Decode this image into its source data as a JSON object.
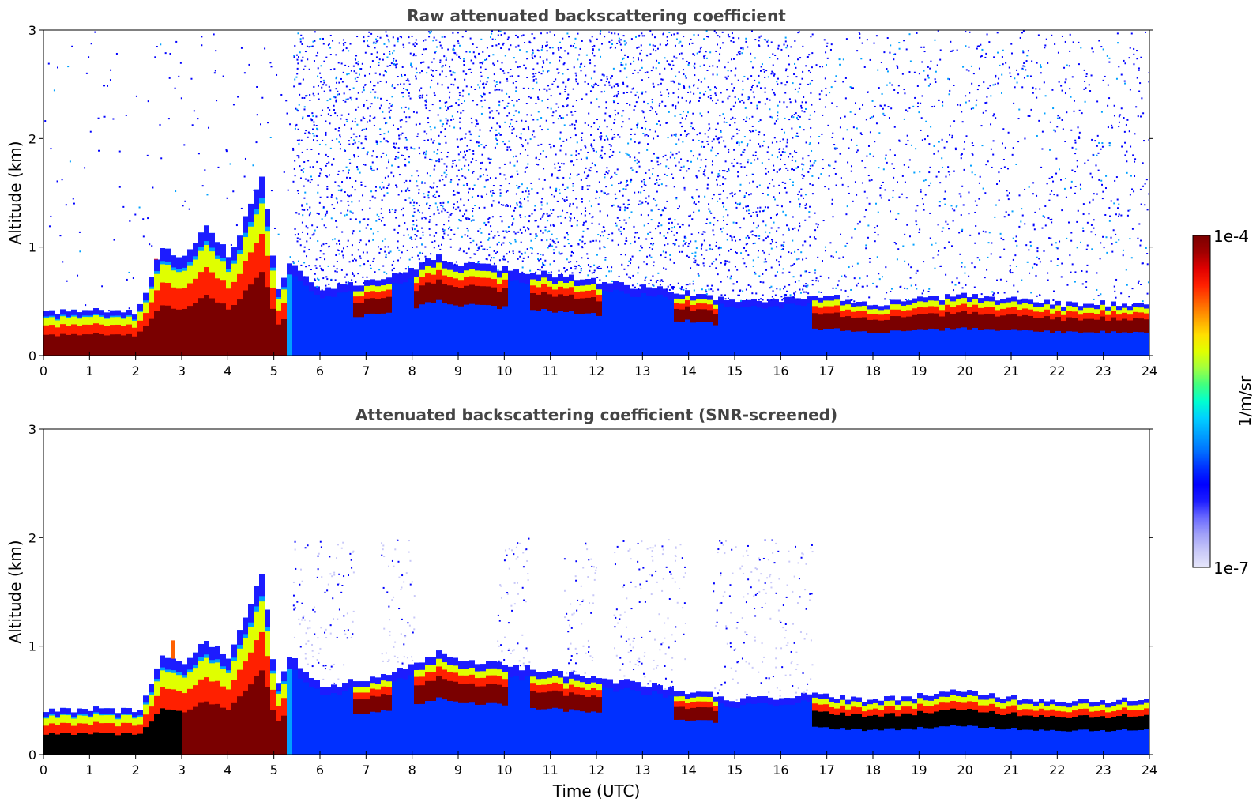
{
  "chart_data": [
    {
      "type": "heatmap",
      "title": "Raw attenuated backscattering coefficient",
      "xlabel": "",
      "ylabel": "Altitude (km)",
      "xlim": [
        0,
        24
      ],
      "ylim": [
        0,
        3
      ],
      "x_ticks": [
        "0",
        "1",
        "2",
        "3",
        "4",
        "5",
        "6",
        "7",
        "8",
        "9",
        "10",
        "11",
        "12",
        "13",
        "14",
        "15",
        "16",
        "17",
        "18",
        "19",
        "20",
        "21",
        "22",
        "23",
        "24"
      ],
      "y_ticks": [
        "0",
        "1",
        "2",
        "3"
      ],
      "layer_top_km": [
        [
          0,
          0.4
        ],
        [
          1,
          0.42
        ],
        [
          2,
          0.4
        ],
        [
          2.5,
          1.0
        ],
        [
          3,
          0.9
        ],
        [
          3.5,
          1.2
        ],
        [
          4,
          0.9
        ],
        [
          4.7,
          1.7
        ],
        [
          5,
          0.6
        ],
        [
          5.3,
          0.85
        ],
        [
          6,
          0.6
        ],
        [
          7,
          0.68
        ],
        [
          8,
          0.8
        ],
        [
          8.5,
          0.92
        ],
        [
          9,
          0.85
        ],
        [
          10,
          0.8
        ],
        [
          11,
          0.75
        ],
        [
          12,
          0.68
        ],
        [
          13,
          0.63
        ],
        [
          14,
          0.58
        ],
        [
          15,
          0.5
        ],
        [
          16,
          0.52
        ],
        [
          16.6,
          0.55
        ],
        [
          17,
          0.55
        ],
        [
          18,
          0.48
        ],
        [
          19,
          0.52
        ],
        [
          20,
          0.55
        ],
        [
          21,
          0.52
        ],
        [
          22,
          0.48
        ],
        [
          23,
          0.48
        ],
        [
          24,
          0.48
        ]
      ],
      "noise_level": "high"
    },
    {
      "type": "heatmap",
      "title": "Attenuated backscattering coefficient (SNR-screened)",
      "xlabel": "Time (UTC)",
      "ylabel": "Altitude (km)",
      "xlim": [
        0,
        24
      ],
      "ylim": [
        0,
        3
      ],
      "x_ticks": [
        "0",
        "1",
        "2",
        "3",
        "4",
        "5",
        "6",
        "7",
        "8",
        "9",
        "10",
        "11",
        "12",
        "13",
        "14",
        "15",
        "16",
        "17",
        "18",
        "19",
        "20",
        "21",
        "22",
        "23",
        "24"
      ],
      "y_ticks": [
        "0",
        "1",
        "2",
        "3"
      ],
      "layer_top_km": [
        [
          0,
          0.4
        ],
        [
          1,
          0.42
        ],
        [
          2,
          0.4
        ],
        [
          2.5,
          0.9
        ],
        [
          3,
          0.85
        ],
        [
          3.5,
          1.05
        ],
        [
          4,
          0.9
        ],
        [
          4.7,
          1.7
        ],
        [
          5,
          0.6
        ],
        [
          5.3,
          0.9
        ],
        [
          6,
          0.62
        ],
        [
          7,
          0.7
        ],
        [
          8,
          0.82
        ],
        [
          8.5,
          0.95
        ],
        [
          9,
          0.88
        ],
        [
          10,
          0.82
        ],
        [
          11,
          0.76
        ],
        [
          12,
          0.7
        ],
        [
          13,
          0.65
        ],
        [
          14,
          0.58
        ],
        [
          15,
          0.5
        ],
        [
          16,
          0.53
        ],
        [
          16.6,
          0.55
        ],
        [
          17,
          0.55
        ],
        [
          18,
          0.5
        ],
        [
          19,
          0.55
        ],
        [
          20,
          0.58
        ],
        [
          21,
          0.53
        ],
        [
          22,
          0.5
        ],
        [
          23,
          0.5
        ],
        [
          24,
          0.5
        ]
      ],
      "noise_level": "low"
    }
  ],
  "colorbar": {
    "label": "1/m/sr",
    "max_label": "1e-4",
    "min_label": "1e-7",
    "scale": "log",
    "range": [
      1e-07,
      0.0001
    ],
    "colors": [
      "#e6e6fa",
      "#c8c8f8",
      "#a0a0f8",
      "#6a6aff",
      "#1c1cff",
      "#0000ff",
      "#0030ff",
      "#0070ff",
      "#00a0ff",
      "#00d0ff",
      "#00ffd0",
      "#40ff80",
      "#a0ff40",
      "#e0ff00",
      "#ffe000",
      "#ffa000",
      "#ff6000",
      "#ff2000",
      "#e00000",
      "#a00000",
      "#7a0000"
    ]
  }
}
